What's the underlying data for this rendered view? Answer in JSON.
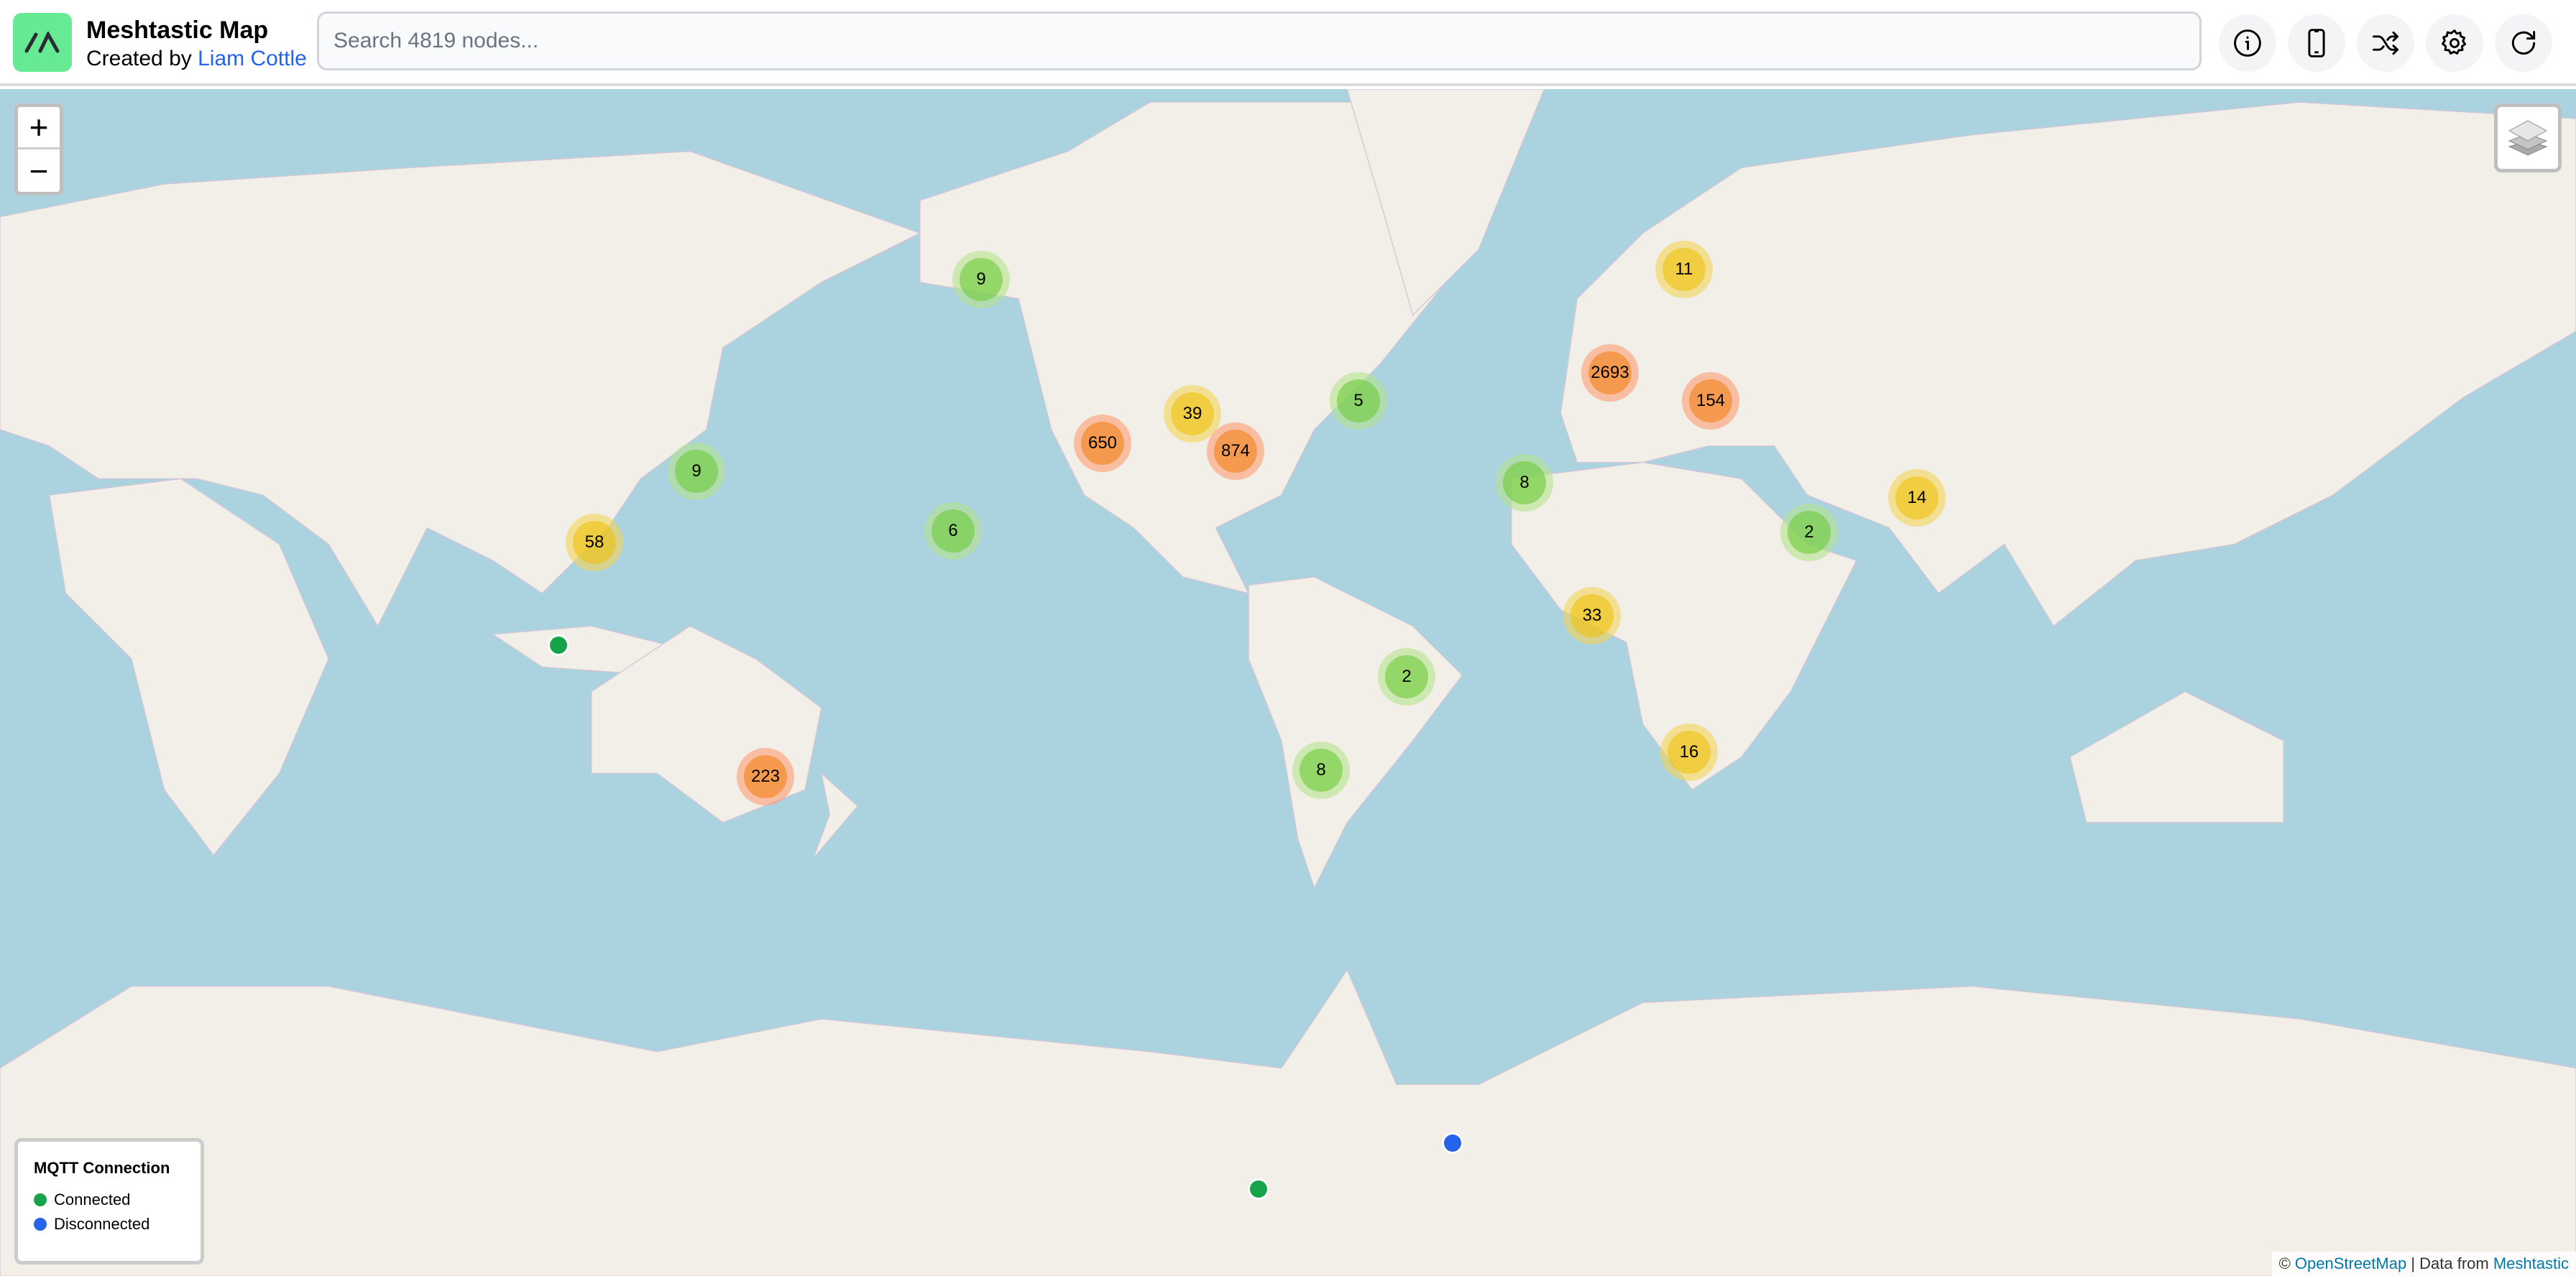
{
  "header": {
    "title": "Meshtastic Map",
    "subtitle_prefix": "Created by ",
    "author": "Liam Cottle",
    "search_placeholder": "Search 4819 nodes...",
    "buttons": [
      {
        "icon": "info-icon",
        "label": "Info"
      },
      {
        "icon": "phone-icon",
        "label": "Device"
      },
      {
        "icon": "shuffle-icon",
        "label": "Random"
      },
      {
        "icon": "gear-icon",
        "label": "Settings"
      },
      {
        "icon": "refresh-icon",
        "label": "Reload"
      }
    ]
  },
  "map": {
    "zoom_in": "+",
    "zoom_out": "−",
    "colors": {
      "sea": "#aad3df",
      "land": "#f2efe9",
      "cluster_small": "#6ecc39",
      "cluster_medium": "#f0c20c",
      "cluster_large": "#f18017",
      "connected": "#16a34a",
      "disconnected": "#2563eb"
    },
    "clusters": [
      "9",
      "11",
      "2693",
      "154",
      "39",
      "650",
      "874",
      "5",
      "9",
      "8",
      "14",
      "58",
      "6",
      "2",
      "33",
      "2",
      "223",
      "16",
      "8"
    ],
    "single_nodes": [
      "connected",
      "connected",
      "disconnected"
    ]
  },
  "legend": {
    "title": "MQTT Connection",
    "items": [
      {
        "label": "Connected",
        "color": "#16a34a"
      },
      {
        "label": "Disconnected",
        "color": "#2563eb"
      }
    ]
  },
  "attribution": {
    "copy": "© ",
    "osm": "OpenStreetMap",
    "sep": " | Data from ",
    "meshtastic": "Meshtastic"
  }
}
